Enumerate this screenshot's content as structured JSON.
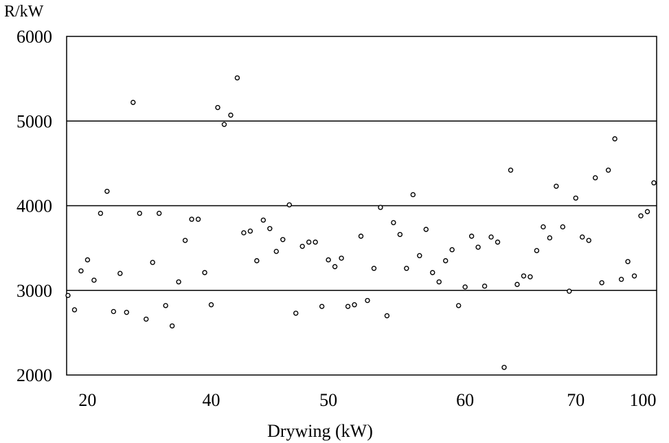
{
  "chart_data": {
    "type": "scatter",
    "title": "",
    "ylabel": "R/kW",
    "xlabel": "Drywing (kW)",
    "ylim": [
      2000,
      6000
    ],
    "yticks": [
      2000,
      3000,
      4000,
      5000,
      6000
    ],
    "ygrid": [
      3000,
      4000,
      5000
    ],
    "xticks": [
      {
        "index": 3,
        "label": "20"
      },
      {
        "index": 22,
        "label": "40"
      },
      {
        "index": 40,
        "label": "50"
      },
      {
        "index": 61,
        "label": "60"
      },
      {
        "index": 78,
        "label": "70"
      },
      {
        "index": 91,
        "label": "100"
      }
    ],
    "grid": "horizontal",
    "marker": "open-circle",
    "values": [
      2940,
      2770,
      3230,
      3360,
      3120,
      3910,
      4170,
      2750,
      3200,
      2740,
      5220,
      3910,
      2660,
      3330,
      3910,
      2820,
      2580,
      3100,
      3590,
      3840,
      3840,
      3210,
      2830,
      5160,
      4960,
      5070,
      5510,
      3680,
      3700,
      3350,
      3830,
      3730,
      3460,
      3600,
      4010,
      2730,
      3520,
      3570,
      3570,
      2810,
      3360,
      3280,
      3380,
      2810,
      2830,
      3640,
      2880,
      3260,
      3980,
      2700,
      3800,
      3660,
      3260,
      4130,
      3410,
      3720,
      3210,
      3100,
      3350,
      3480,
      2820,
      3040,
      3640,
      3510,
      3050,
      3630,
      3570,
      2090,
      4420,
      3070,
      3170,
      3160,
      3470,
      3750,
      3620,
      4230,
      3750,
      2990,
      4090,
      3630,
      3590,
      4330,
      3090,
      4420,
      4790,
      3130,
      3340,
      3170,
      3880,
      3930,
      4270
    ]
  }
}
